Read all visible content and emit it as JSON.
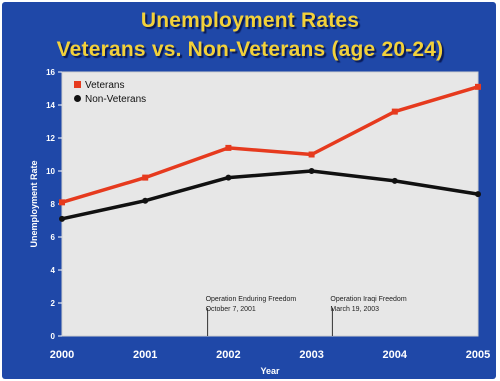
{
  "colors": {
    "background": "#1f48a8",
    "plot_area": "#e7e7e7",
    "title": "#f2d13a",
    "veterans": "#e63a1e",
    "non_veterans": "#111111",
    "axis_text": "#ffffff"
  },
  "chart_data": {
    "type": "line",
    "title": "Unemployment Rates",
    "subtitle": "Veterans vs. Non-Veterans (age 20-24)",
    "xlabel": "Year",
    "ylabel": "Unemployment Rate",
    "x": [
      "2000",
      "2001",
      "2002",
      "2003",
      "2004",
      "2005"
    ],
    "y_ticks": [
      "0",
      "2",
      "4",
      "6",
      "8",
      "10",
      "12",
      "14",
      "16"
    ],
    "ylim": [
      0,
      16
    ],
    "grid": false,
    "legend_position": "top-left",
    "series": [
      {
        "name": "Veterans",
        "values": [
          8.1,
          9.6,
          11.4,
          11.0,
          13.6,
          15.1
        ]
      },
      {
        "name": "Non-Veterans",
        "values": [
          7.1,
          8.2,
          9.6,
          10.0,
          9.4,
          8.6
        ]
      }
    ],
    "annotations": [
      {
        "line1": "Operation Enduring Freedom",
        "line2": "October 7, 2001",
        "x": 2001.75
      },
      {
        "line1": "Operation Iraqi Freedom",
        "line2": "March 19, 2003",
        "x": 2003.25
      }
    ]
  }
}
